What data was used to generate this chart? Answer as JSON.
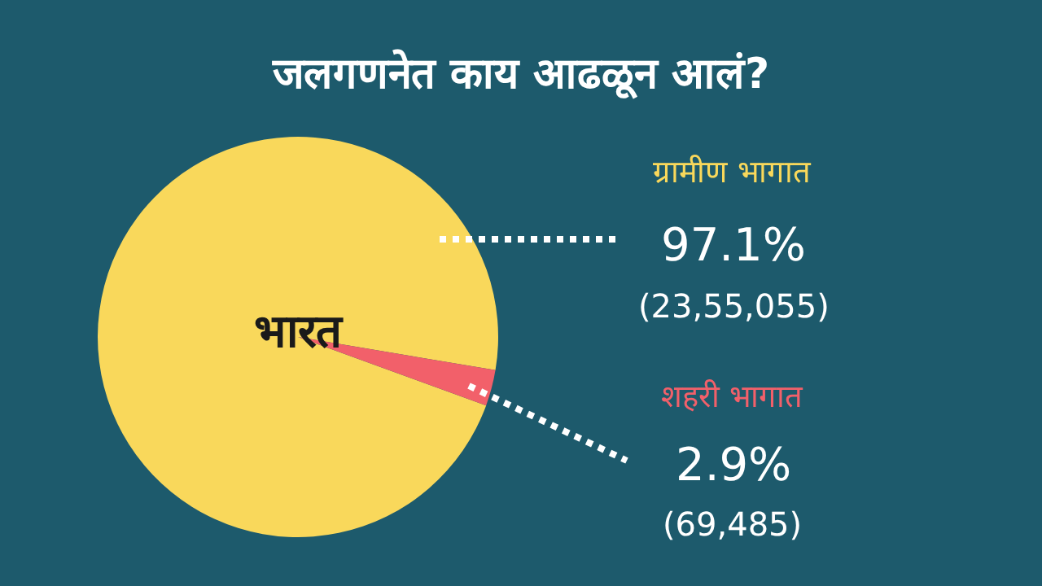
{
  "chart_data": {
    "type": "pie",
    "title": "जलगणनेत काय आढळून आलं?",
    "categories": [
      "ग्रामीण भागात",
      "शहरी भागात"
    ],
    "values": [
      97.1,
      2.9
    ],
    "colors": [
      "#f9d85b",
      "#f2606a"
    ],
    "value_labels": [
      "97.1%",
      "2.9%"
    ],
    "annotations": [
      "भारत",
      "(23,55,055)",
      "(69,485)"
    ]
  }
}
